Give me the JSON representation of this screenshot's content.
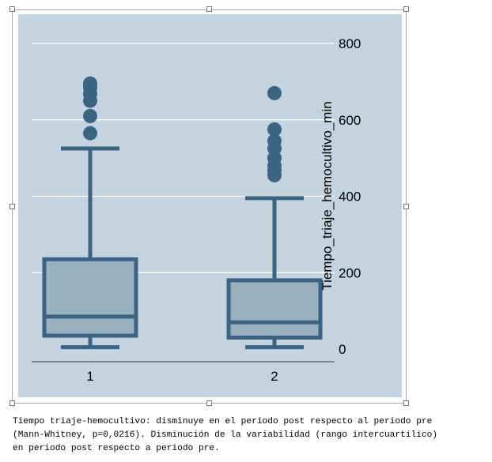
{
  "chart_data": {
    "type": "boxplot",
    "ylabel": "Tiempo_triaje_hemocultivo_min",
    "ylim": [
      -35,
      835
    ],
    "yticks": [
      0,
      200,
      400,
      600,
      800
    ],
    "yaxis_position": "right",
    "grid": "horizontal",
    "categories": [
      "1",
      "2"
    ],
    "boxes": [
      {
        "category": "1",
        "whisker_low": 5,
        "q1": 35,
        "median": 85,
        "q3": 235,
        "whisker_high": 525,
        "outliers": [
          565,
          610,
          650,
          668,
          685,
          695
        ]
      },
      {
        "category": "2",
        "whisker_low": 5,
        "q1": 30,
        "median": 70,
        "q3": 180,
        "whisker_high": 395,
        "outliers": [
          455,
          468,
          480,
          500,
          525,
          545,
          575,
          670
        ]
      }
    ],
    "colors": {
      "panel": "#c3d4e0",
      "box_fill": "#99b0bf",
      "stroke": "#3b6482",
      "grid": "#ffffff"
    }
  },
  "caption": {
    "line1": "Tiempo triaje-hemocultivo: disminuye en el periodo post respecto al periodo pre",
    "line2": "(Mann-Whitney, p=0,0216). Disminución de la variabilidad (rango intercuartílico)",
    "line3": "en periodo post respecto a periodo pre."
  }
}
